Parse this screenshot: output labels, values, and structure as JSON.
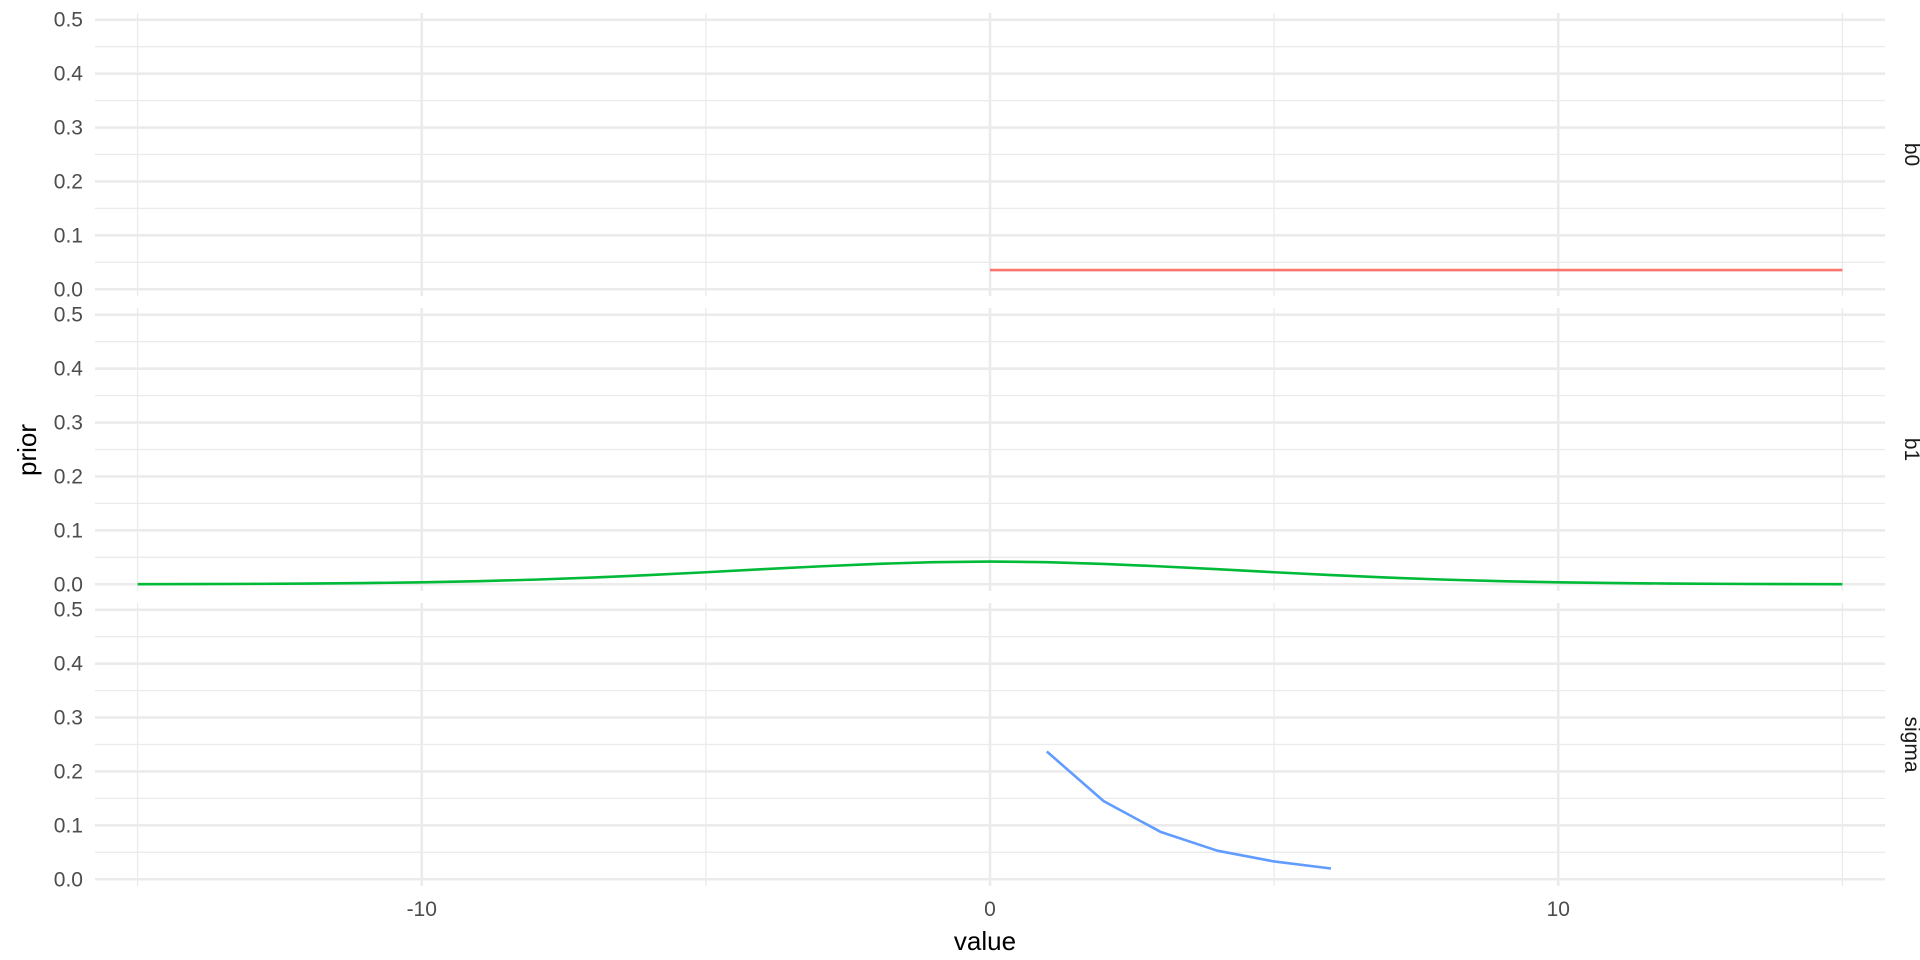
{
  "chart_data": {
    "type": "line",
    "xlabel": "value",
    "ylabel": "prior",
    "xlim": [
      -15.75,
      15.75
    ],
    "x_major_ticks": [
      -10,
      0,
      10
    ],
    "x_tick_labels": [
      "-10",
      "0",
      "10"
    ],
    "x_minor_ticks": [
      -15,
      -5,
      5,
      15
    ],
    "ylim": [
      0,
      0.5
    ],
    "y_major_ticks": [
      0,
      0.1,
      0.2,
      0.3,
      0.4,
      0.5
    ],
    "y_tick_labels": [
      "0.0",
      "0.1",
      "0.2",
      "0.3",
      "0.4",
      "0.5"
    ],
    "grid": true,
    "legend": "none",
    "facets": [
      {
        "label": "b0",
        "color": "#F8766D",
        "x": [
          0,
          15
        ],
        "y": [
          0.0357,
          0.0357
        ]
      },
      {
        "label": "b1",
        "color": "#00BA38",
        "x": [
          -15,
          -14,
          -13,
          -12,
          -11,
          -10,
          -9,
          -8,
          -7,
          -6,
          -5,
          -4,
          -3,
          -2,
          -1,
          0,
          1,
          2,
          3,
          4,
          5,
          6,
          7,
          8,
          9,
          10,
          11,
          12,
          13,
          14,
          15
        ],
        "y": [
          0.0002,
          0.0004,
          0.0007,
          0.0013,
          0.0022,
          0.0036,
          0.0057,
          0.0086,
          0.0124,
          0.017,
          0.0223,
          0.0279,
          0.0332,
          0.0378,
          0.041,
          0.0421,
          0.041,
          0.0378,
          0.0332,
          0.0279,
          0.0223,
          0.017,
          0.0124,
          0.0086,
          0.0057,
          0.0036,
          0.0022,
          0.0013,
          0.0007,
          0.0004,
          0.0002
        ]
      },
      {
        "label": "sigma",
        "color": "#619CFF",
        "x": [
          1,
          2,
          3,
          4,
          5,
          6
        ],
        "y": [
          0.237,
          0.145,
          0.088,
          0.053,
          0.033,
          0.02
        ]
      }
    ]
  }
}
